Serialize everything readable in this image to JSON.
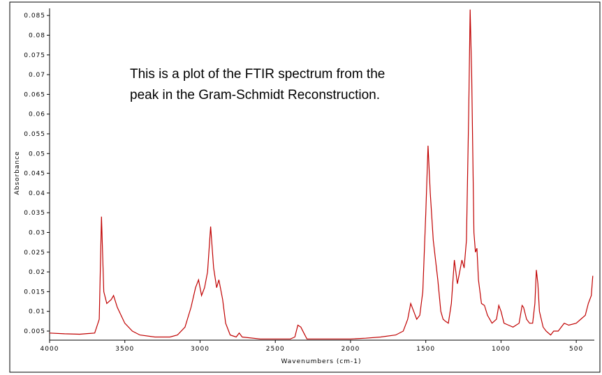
{
  "chart_data": {
    "type": "line",
    "annotation": [
      "This is a plot of the FTIR spectrum from the",
      "peak in the Gram-Schmidt Reconstruction."
    ],
    "x_label": "Wavenumbers (cm-1)",
    "y_label": "Absorbance",
    "color": "#c00000",
    "xlim": [
      4000,
      380
    ],
    "ylim": [
      0.0027,
      0.0868
    ],
    "xticks": [
      4000,
      3500,
      3000,
      2500,
      2000,
      1500,
      1000,
      500
    ],
    "yticks": [
      0.005,
      0.01,
      0.015,
      0.02,
      0.025,
      0.03,
      0.035,
      0.04,
      0.045,
      0.05,
      0.055,
      0.06,
      0.065,
      0.07,
      0.075,
      0.08,
      0.085
    ],
    "x": [
      4000,
      3900,
      3800,
      3700,
      3670,
      3655,
      3640,
      3620,
      3590,
      3575,
      3550,
      3500,
      3450,
      3400,
      3300,
      3200,
      3150,
      3100,
      3060,
      3030,
      3010,
      2990,
      2970,
      2950,
      2930,
      2910,
      2890,
      2875,
      2850,
      2830,
      2800,
      2760,
      2740,
      2720,
      2600,
      2400,
      2370,
      2350,
      2330,
      2310,
      2290,
      2200,
      2000,
      1900,
      1800,
      1700,
      1650,
      1620,
      1600,
      1580,
      1560,
      1540,
      1520,
      1500,
      1485,
      1470,
      1450,
      1420,
      1400,
      1385,
      1370,
      1350,
      1330,
      1310,
      1290,
      1275,
      1260,
      1245,
      1230,
      1215,
      1205,
      1195,
      1180,
      1170,
      1160,
      1150,
      1130,
      1110,
      1090,
      1060,
      1030,
      1015,
      1000,
      980,
      950,
      920,
      880,
      860,
      850,
      830,
      810,
      790,
      775,
      765,
      755,
      745,
      720,
      700,
      670,
      650,
      620,
      580,
      550,
      500,
      470,
      440,
      420,
      400,
      390
    ],
    "values": [
      0.0045,
      0.0043,
      0.0042,
      0.0045,
      0.008,
      0.034,
      0.015,
      0.012,
      0.013,
      0.014,
      0.011,
      0.007,
      0.005,
      0.004,
      0.0035,
      0.0035,
      0.004,
      0.006,
      0.011,
      0.016,
      0.018,
      0.014,
      0.016,
      0.02,
      0.0315,
      0.021,
      0.016,
      0.018,
      0.013,
      0.007,
      0.004,
      0.0035,
      0.0045,
      0.0035,
      0.003,
      0.003,
      0.0035,
      0.0065,
      0.006,
      0.0045,
      0.003,
      0.003,
      0.003,
      0.0032,
      0.0035,
      0.004,
      0.005,
      0.008,
      0.012,
      0.01,
      0.008,
      0.009,
      0.015,
      0.035,
      0.052,
      0.04,
      0.028,
      0.018,
      0.01,
      0.008,
      0.0075,
      0.007,
      0.012,
      0.023,
      0.017,
      0.02,
      0.023,
      0.021,
      0.028,
      0.06,
      0.0865,
      0.07,
      0.03,
      0.025,
      0.026,
      0.018,
      0.012,
      0.0115,
      0.009,
      0.007,
      0.008,
      0.0115,
      0.01,
      0.007,
      0.0065,
      0.006,
      0.007,
      0.0115,
      0.011,
      0.008,
      0.007,
      0.007,
      0.012,
      0.0205,
      0.017,
      0.01,
      0.006,
      0.005,
      0.004,
      0.005,
      0.005,
      0.007,
      0.0065,
      0.007,
      0.008,
      0.009,
      0.012,
      0.014,
      0.019
    ]
  }
}
